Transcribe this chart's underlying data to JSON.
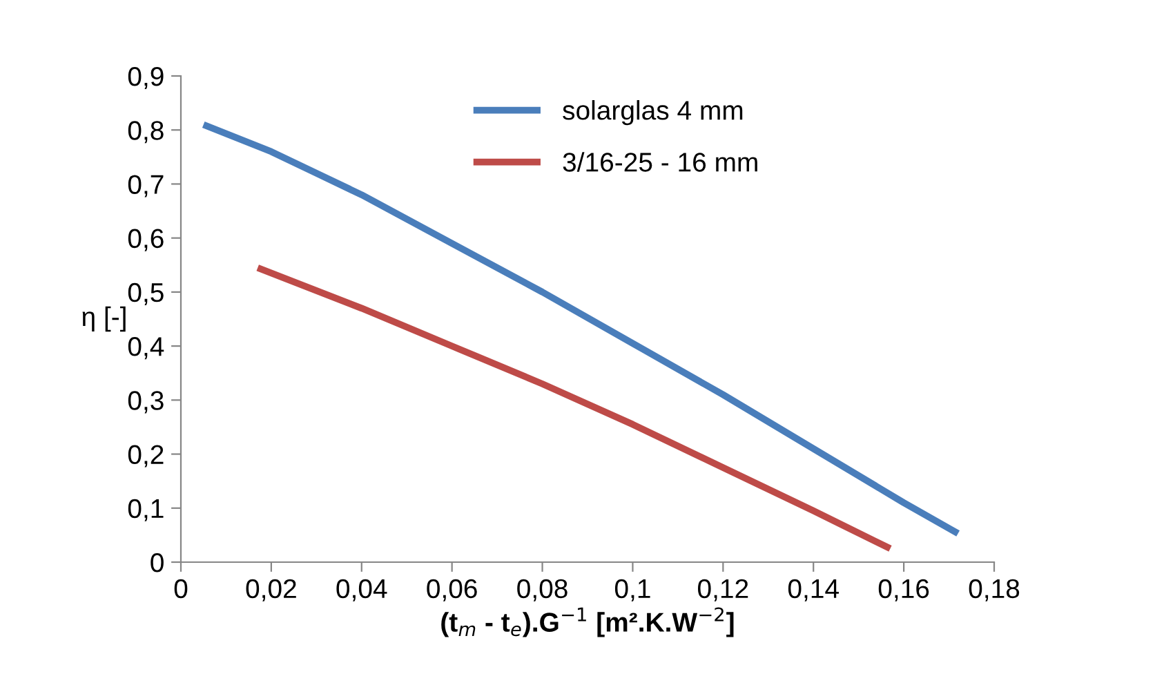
{
  "chart_data": {
    "type": "line",
    "xlabel": "(t$_{m}$ - t$_{e}$).G$^{−1}$ [m².K.W$^{−2}$]",
    "ylabel": "η [-]",
    "series": [
      {
        "name": "solarglas 4 mm",
        "color": "#4a7ebb",
        "x": [
          0.005,
          0.02,
          0.04,
          0.06,
          0.08,
          0.1,
          0.12,
          0.14,
          0.16,
          0.172
        ],
        "values": [
          0.81,
          0.76,
          0.68,
          0.59,
          0.5,
          0.405,
          0.31,
          0.21,
          0.11,
          0.053
        ]
      },
      {
        "name": "3/16-25 - 16 mm",
        "color": "#be4b48",
        "x": [
          0.017,
          0.04,
          0.06,
          0.08,
          0.1,
          0.12,
          0.14,
          0.157
        ],
        "values": [
          0.545,
          0.47,
          0.4,
          0.33,
          0.255,
          0.175,
          0.095,
          0.025
        ]
      }
    ],
    "xlim": [
      0,
      0.18
    ],
    "xticks": [
      0,
      {
        "value": 0.02,
        "label": "0,02"
      },
      {
        "value": 0.04,
        "label": "0,04"
      },
      {
        "value": 0.06,
        "label": "0,06"
      },
      {
        "value": 0.08,
        "label": "0,08"
      },
      {
        "value": 0.1,
        "label": "0,1"
      },
      {
        "value": 0.12,
        "label": "0,12"
      },
      {
        "value": 0.14,
        "label": "0,14"
      },
      {
        "value": 0.16,
        "label": "0,16"
      },
      {
        "value": 0.18,
        "label": "0,18"
      }
    ],
    "ylim": [
      0,
      0.9
    ],
    "yticks": [
      0,
      {
        "value": 0.1,
        "label": "0,1"
      },
      {
        "value": 0.2,
        "label": "0,2"
      },
      {
        "value": 0.3,
        "label": "0,3"
      },
      {
        "value": 0.4,
        "label": "0,4"
      },
      {
        "value": 0.5,
        "label": "0,5"
      },
      {
        "value": 0.6,
        "label": "0,6"
      },
      {
        "value": 0.7,
        "label": "0,7"
      },
      {
        "value": 0.8,
        "label": "0,8"
      },
      {
        "value": 0.9,
        "label": "0,9"
      }
    ],
    "grid": false,
    "legend": "top",
    "line_style": "solid",
    "marker": "none"
  }
}
